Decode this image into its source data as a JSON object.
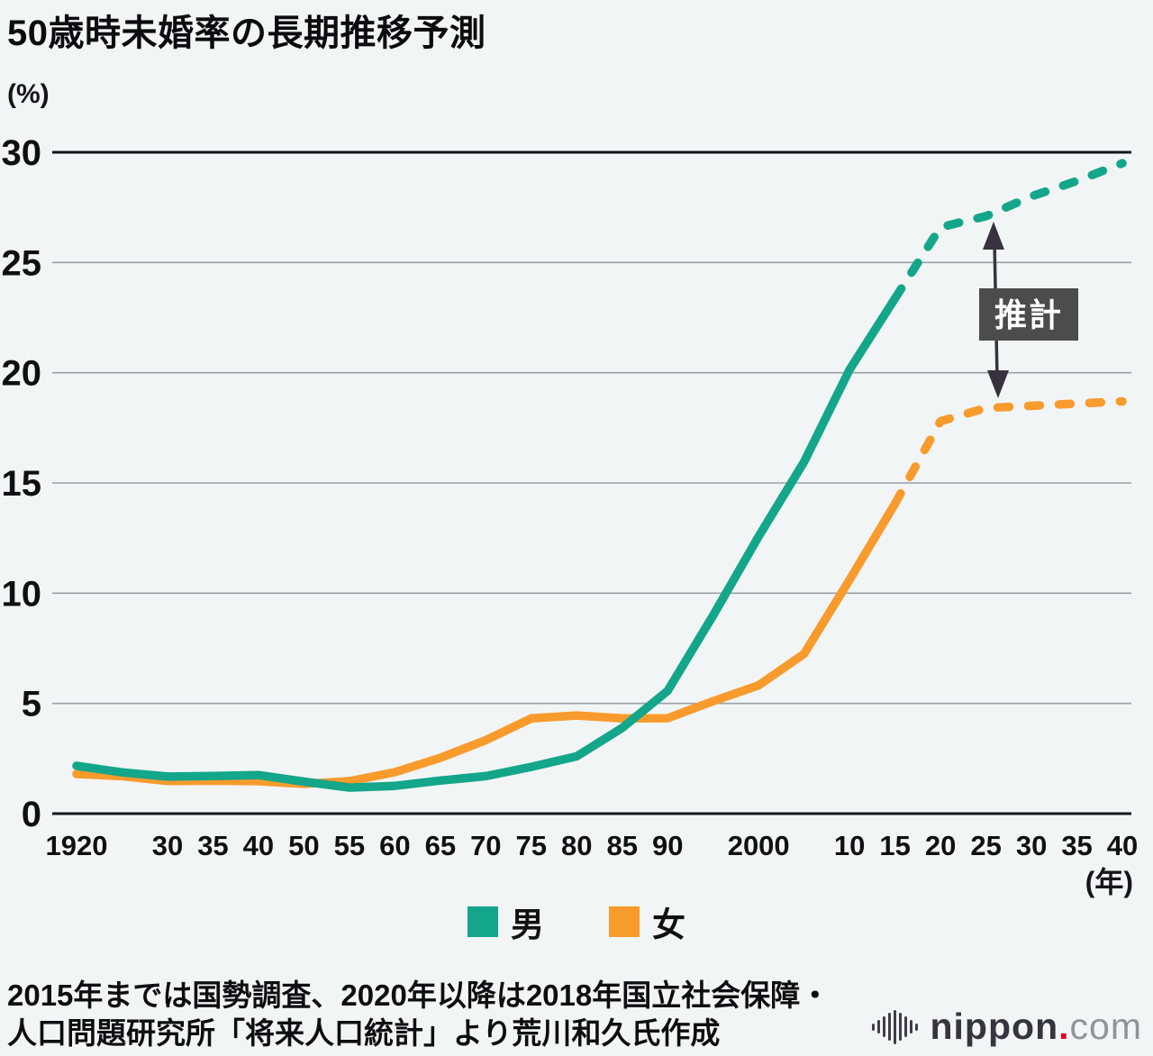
{
  "title": "50歳時未婚率の長期推移予測",
  "y_unit_label": "(%)",
  "x_unit_label": "(年)",
  "annotation_label": "推計",
  "footnote_lines": [
    "2015年までは国勢調査、2020年以降は2018年国立社会保障・",
    "人口問題研究所「将来人口統計」より荒川和久氏作成"
  ],
  "logo": {
    "icon": "soundwave-bars-icon",
    "name": "nippon",
    "dot": ".",
    "tld": "com"
  },
  "colors": {
    "male_line": "#14a68a",
    "female_line": "#f89b2d",
    "grid_minor": "#9aa0a8",
    "grid_major": "#15151d",
    "annotation_box": "#4c4c4c",
    "annotation_text": "#ffffff",
    "arrow": "#38323e",
    "background": "#f2f5f6"
  },
  "chart_data": {
    "type": "line",
    "title": "50歳時未婚率の長期推移予測",
    "ylabel": "(%)",
    "xlabel": "(年)",
    "ylim": [
      0,
      30
    ],
    "yticks": [
      0,
      5,
      10,
      15,
      20,
      25,
      30
    ],
    "grid": "horizontal-only",
    "legend_position": "bottom-center",
    "x_ticks": [
      {
        "label": "1920",
        "year": 1920
      },
      {
        "label": "30",
        "year": 1930
      },
      {
        "label": "35",
        "year": 1935
      },
      {
        "label": "40",
        "year": 1940
      },
      {
        "label": "50",
        "year": 1950
      },
      {
        "label": "55",
        "year": 1955
      },
      {
        "label": "60",
        "year": 1960
      },
      {
        "label": "65",
        "year": 1965
      },
      {
        "label": "70",
        "year": 1970
      },
      {
        "label": "75",
        "year": 1975
      },
      {
        "label": "80",
        "year": 1980
      },
      {
        "label": "85",
        "year": 1985
      },
      {
        "label": "90",
        "year": 1990
      },
      {
        "label": "2000",
        "year": 2000
      },
      {
        "label": "10",
        "year": 2010
      },
      {
        "label": "15",
        "year": 2015
      },
      {
        "label": "20",
        "year": 2020
      },
      {
        "label": "25",
        "year": 2025
      },
      {
        "label": "30",
        "year": 2030
      },
      {
        "label": "35",
        "year": 2035
      },
      {
        "label": "40",
        "year": 2040
      }
    ],
    "years": [
      1920,
      1925,
      1930,
      1935,
      1940,
      1950,
      1955,
      1960,
      1965,
      1970,
      1975,
      1980,
      1985,
      1990,
      1995,
      2000,
      2005,
      2010,
      2015,
      2020,
      2025,
      2030,
      2035,
      2040
    ],
    "last_actual_year": 2015,
    "estimate_from_year": 2020,
    "estimate_annotation": "推計",
    "series": [
      {
        "name": "男",
        "color": "#14a68a",
        "values": [
          2.17,
          1.87,
          1.68,
          1.71,
          1.75,
          1.45,
          1.18,
          1.26,
          1.5,
          1.7,
          2.12,
          2.6,
          3.89,
          5.57,
          8.99,
          12.57,
          15.96,
          20.14,
          23.37,
          26.6,
          27.1,
          28.0,
          28.7,
          29.5
        ]
      },
      {
        "name": "女",
        "color": "#f89b2d",
        "values": [
          1.8,
          1.7,
          1.48,
          1.49,
          1.47,
          1.35,
          1.47,
          1.88,
          2.53,
          3.33,
          4.32,
          4.45,
          4.32,
          4.33,
          5.1,
          5.82,
          7.25,
          10.61,
          14.06,
          17.8,
          18.4,
          18.5,
          18.6,
          18.7
        ]
      }
    ]
  }
}
